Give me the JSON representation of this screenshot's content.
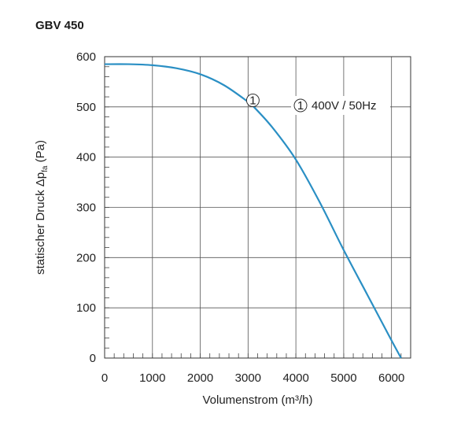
{
  "chart_data": {
    "type": "line",
    "title": "GBV 450",
    "xlabel": "Volumenstrom (m³/h)",
    "ylabel_main": "statischer Druck Δp",
    "ylabel_sub": "fa",
    "ylabel_unit": " (Pa)",
    "xlim": [
      0,
      6400
    ],
    "ylim": [
      0,
      600
    ],
    "x_ticks": [
      0,
      1000,
      2000,
      3000,
      4000,
      5000,
      6000
    ],
    "y_ticks": [
      0,
      100,
      200,
      300,
      400,
      500,
      600
    ],
    "grid": true,
    "series": [
      {
        "name": "400V / 50Hz",
        "marker_label": "1",
        "color": "#2a8fc4",
        "x": [
          0,
          500,
          1000,
          1500,
          2000,
          2500,
          3000,
          3100,
          3500,
          4000,
          4500,
          5000,
          5500,
          6000,
          6200
        ],
        "y": [
          585,
          585,
          583,
          577,
          565,
          543,
          510,
          502,
          460,
          395,
          310,
          215,
          125,
          35,
          0
        ]
      }
    ],
    "series_marker_at": [
      3100,
      502
    ],
    "legend": {
      "circle": "1",
      "text": "400V / 50Hz",
      "position": "top-right"
    }
  }
}
